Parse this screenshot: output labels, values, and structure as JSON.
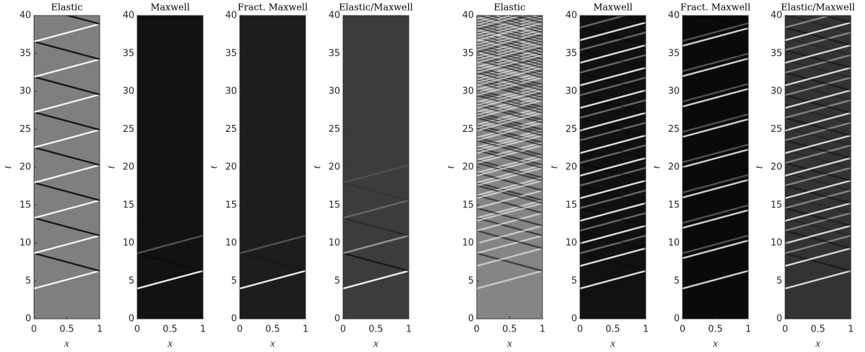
{
  "chart_data": [
    {
      "type": "heatmap",
      "title": "Elastic",
      "xlabel": "x",
      "ylabel": "t",
      "xlim": [
        0,
        1
      ],
      "ylim": [
        0,
        40
      ],
      "xticks": [
        0,
        0.5,
        1
      ],
      "yticks": [
        0,
        5,
        10,
        15,
        20,
        25,
        30,
        35,
        40
      ],
      "color": "#7f7f7f"
    },
    {
      "type": "heatmap",
      "title": "Maxwell",
      "xlabel": "x",
      "ylabel": "t",
      "xlim": [
        0,
        1
      ],
      "ylim": [
        0,
        40
      ],
      "xticks": [
        0,
        0.5,
        1
      ],
      "yticks": [
        0,
        5,
        10,
        15,
        20,
        25,
        30,
        35,
        40
      ],
      "color": "#121212"
    },
    {
      "type": "heatmap",
      "title": "Fract. Maxwell",
      "xlabel": "x",
      "ylabel": "t",
      "xlim": [
        0,
        1
      ],
      "ylim": [
        0,
        40
      ],
      "xticks": [
        0,
        0.5,
        1
      ],
      "yticks": [
        0,
        5,
        10,
        15,
        20,
        25,
        30,
        35,
        40
      ],
      "color": "#1d1d1d"
    },
    {
      "type": "heatmap",
      "title": "Elastic/Maxwell",
      "xlabel": "x",
      "ylabel": "t",
      "xlim": [
        0,
        1
      ],
      "ylim": [
        0,
        40
      ],
      "xticks": [
        0,
        0.5,
        1
      ],
      "yticks": [
        0,
        5,
        10,
        15,
        20,
        25,
        30,
        35,
        40
      ],
      "color": "#3c3c3c"
    },
    {
      "type": "heatmap",
      "title": "Elastic",
      "xlabel": "x",
      "ylabel": "t",
      "xlim": [
        0,
        1
      ],
      "ylim": [
        0,
        40
      ],
      "xticks": [
        0,
        0.5,
        1
      ],
      "yticks": [
        0,
        5,
        10,
        15,
        20,
        25,
        30,
        35,
        40
      ],
      "color": "#858585"
    },
    {
      "type": "heatmap",
      "title": "Maxwell",
      "xlabel": "x",
      "ylabel": "t",
      "xlim": [
        0,
        1
      ],
      "ylim": [
        0,
        40
      ],
      "xticks": [
        0,
        0.5,
        1
      ],
      "yticks": [
        0,
        5,
        10,
        15,
        20,
        25,
        30,
        35,
        40
      ],
      "color": "#111111"
    },
    {
      "type": "heatmap",
      "title": "Fract. Maxwell",
      "xlabel": "x",
      "ylabel": "t",
      "xlim": [
        0,
        1
      ],
      "ylim": [
        0,
        40
      ],
      "xticks": [
        0,
        0.5,
        1
      ],
      "yticks": [
        0,
        5,
        10,
        15,
        20,
        25,
        30,
        35,
        40
      ],
      "color": "#0a0a0a"
    },
    {
      "type": "heatmap",
      "title": "Elastic/Maxwell",
      "xlabel": "x",
      "ylabel": "t",
      "xlim": [
        0,
        1
      ],
      "ylim": [
        0,
        40
      ],
      "xticks": [
        0,
        0.5,
        1
      ],
      "yticks": [
        0,
        5,
        10,
        15,
        20,
        25,
        30,
        35,
        40
      ],
      "color": "#333333"
    }
  ]
}
